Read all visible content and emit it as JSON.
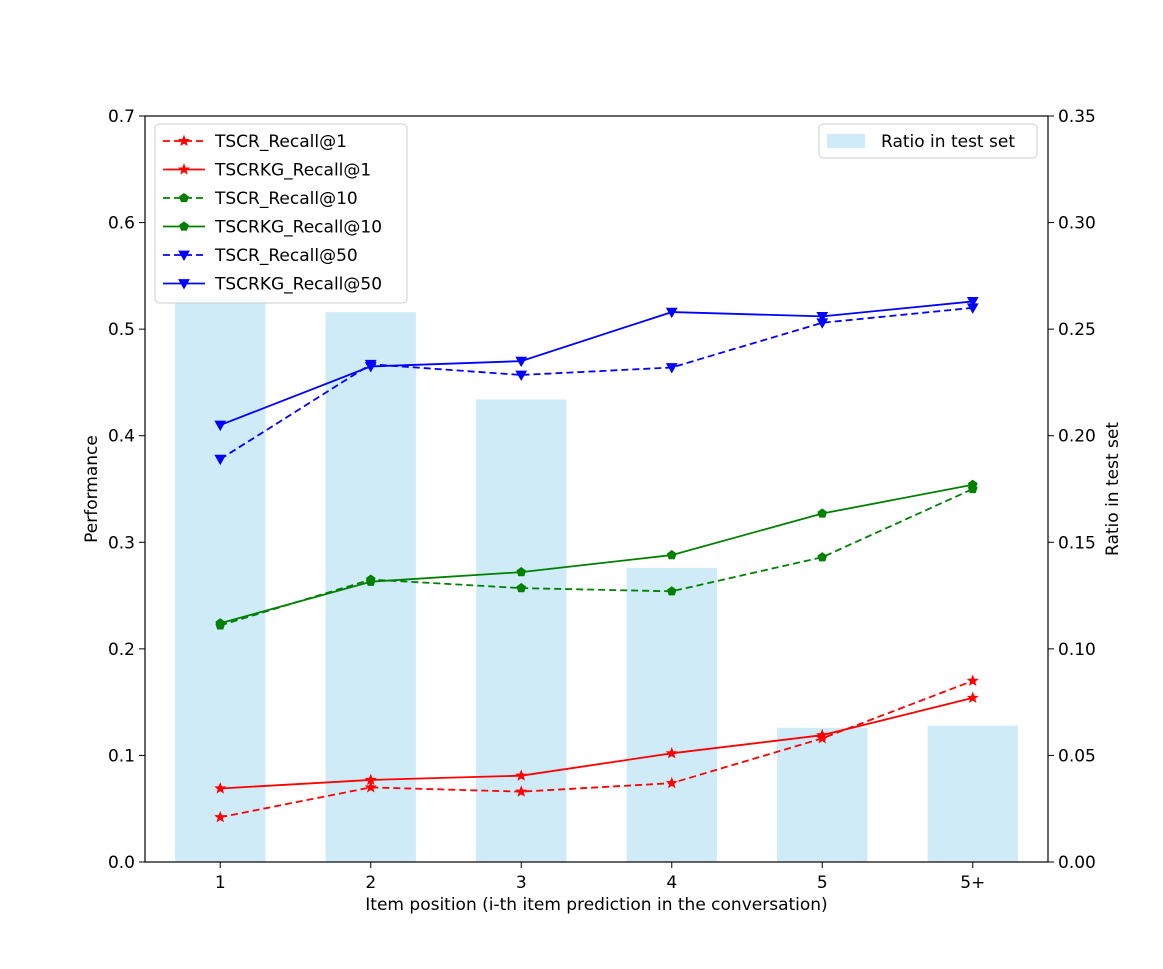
{
  "chart_data": {
    "type": "bar+line",
    "categories": [
      "1",
      "2",
      "3",
      "4",
      "5",
      "5+"
    ],
    "xlabel": "Item position (i-th item prediction in the conversation)",
    "ylabel": "Performance",
    "y2label": "Ratio in test set",
    "ylim": [
      0,
      0.7
    ],
    "y2lim": [
      0,
      0.35
    ],
    "yticks": [
      "0.0",
      "0.1",
      "0.2",
      "0.3",
      "0.4",
      "0.5",
      "0.6",
      "0.7"
    ],
    "y2ticks": [
      "0.00",
      "0.05",
      "0.10",
      "0.15",
      "0.20",
      "0.25",
      "0.30",
      "0.35"
    ],
    "bars": {
      "name": "Ratio in test set",
      "axis": "right",
      "color": "#87ceeb",
      "values": [
        0.265,
        0.258,
        0.217,
        0.138,
        0.063,
        0.064
      ]
    },
    "series": [
      {
        "name": "TSCR_Recall@1",
        "color": "#ff0000",
        "dash": true,
        "marker": "star",
        "values": [
          0.042,
          0.07,
          0.066,
          0.074,
          0.116,
          0.17
        ]
      },
      {
        "name": "TSCRKG_Recall@1",
        "color": "#ff0000",
        "dash": false,
        "marker": "star",
        "values": [
          0.069,
          0.077,
          0.081,
          0.102,
          0.119,
          0.154
        ]
      },
      {
        "name": "TSCR_Recall@10",
        "color": "#008000",
        "dash": true,
        "marker": "pentagon",
        "values": [
          0.222,
          0.265,
          0.257,
          0.254,
          0.286,
          0.35
        ]
      },
      {
        "name": "TSCRKG_Recall@10",
        "color": "#008000",
        "dash": false,
        "marker": "pentagon",
        "values": [
          0.224,
          0.263,
          0.272,
          0.288,
          0.327,
          0.354
        ]
      },
      {
        "name": "TSCR_Recall@50",
        "color": "#0000ff",
        "dash": true,
        "marker": "triangle-down",
        "values": [
          0.378,
          0.467,
          0.457,
          0.464,
          0.506,
          0.52
        ]
      },
      {
        "name": "TSCRKG_Recall@50",
        "color": "#0000ff",
        "dash": false,
        "marker": "triangle-down",
        "values": [
          0.41,
          0.465,
          0.47,
          0.516,
          0.512,
          0.526
        ]
      }
    ],
    "legend_left": "top-left",
    "legend_right": "top-right"
  }
}
